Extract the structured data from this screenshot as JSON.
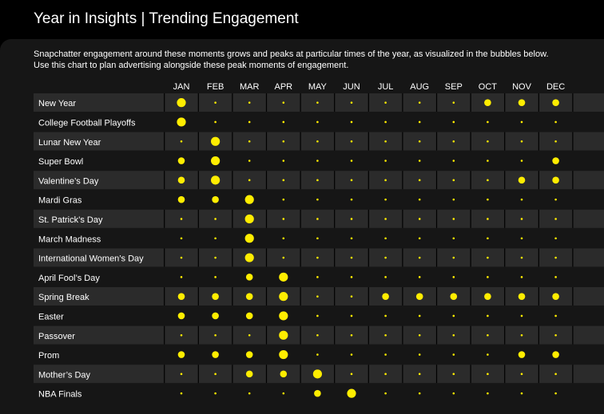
{
  "page": {
    "title": "Year in Insights | Trending Engagement",
    "intro_line1": "Snapchatter engagement around these moments grows and peaks at particular times of the year, as visualized in the bubbles below.",
    "intro_line2": "Use this chart to plan advertising alongside these peak moments of engagement."
  },
  "colors": {
    "bubble": "#FFED00",
    "row_dark": "#2B2B2B",
    "row_light": "#161616",
    "background": "#000000"
  },
  "chart_data": {
    "type": "bubble-matrix",
    "title": "",
    "categories": [
      "JAN",
      "FEB",
      "MAR",
      "APR",
      "MAY",
      "JUN",
      "JUL",
      "AUG",
      "SEP",
      "OCT",
      "NOV",
      "DEC"
    ],
    "scale": "0 = minimal engagement, 3 = peak engagement",
    "rows": [
      {
        "label": "New Year",
        "values": [
          2,
          0,
          0,
          0,
          0,
          0,
          0,
          0,
          0,
          1,
          1,
          1
        ]
      },
      {
        "label": "College Football Playoffs",
        "values": [
          2,
          0,
          0,
          0,
          0,
          0,
          0,
          0,
          0,
          0,
          0,
          0
        ]
      },
      {
        "label": "Lunar New Year",
        "values": [
          0,
          2,
          0,
          0,
          0,
          0,
          0,
          0,
          0,
          0,
          0,
          0
        ]
      },
      {
        "label": "Super Bowl",
        "values": [
          1,
          2,
          0,
          0,
          0,
          0,
          0,
          0,
          0,
          0,
          0,
          1
        ]
      },
      {
        "label": "Valentine’s Day",
        "values": [
          1,
          2,
          0,
          0,
          0,
          0,
          0,
          0,
          0,
          0,
          1,
          1
        ]
      },
      {
        "label": "Mardi Gras",
        "values": [
          1,
          1,
          2,
          0,
          0,
          0,
          0,
          0,
          0,
          0,
          0,
          0
        ]
      },
      {
        "label": "St. Patrick’s Day",
        "values": [
          0,
          0,
          2,
          0,
          0,
          0,
          0,
          0,
          0,
          0,
          0,
          0
        ]
      },
      {
        "label": "March Madness",
        "values": [
          0,
          0,
          2,
          0,
          0,
          0,
          0,
          0,
          0,
          0,
          0,
          0
        ]
      },
      {
        "label": "International Women’s Day",
        "values": [
          0,
          0,
          2,
          0,
          0,
          0,
          0,
          0,
          0,
          0,
          0,
          0
        ]
      },
      {
        "label": "April Fool’s Day",
        "values": [
          0,
          0,
          1,
          2,
          0,
          0,
          0,
          0,
          0,
          0,
          0,
          0
        ]
      },
      {
        "label": "Spring Break",
        "values": [
          1,
          1,
          1,
          2,
          0,
          0,
          1,
          1,
          1,
          1,
          1,
          1
        ]
      },
      {
        "label": "Easter",
        "values": [
          1,
          1,
          1,
          2,
          0,
          0,
          0,
          0,
          0,
          0,
          0,
          0
        ]
      },
      {
        "label": "Passover",
        "values": [
          0,
          0,
          0,
          2,
          0,
          0,
          0,
          0,
          0,
          0,
          0,
          0
        ]
      },
      {
        "label": "Prom",
        "values": [
          1,
          1,
          1,
          2,
          0,
          0,
          0,
          0,
          0,
          0,
          1,
          1
        ]
      },
      {
        "label": "Mother’s Day",
        "values": [
          0,
          0,
          1,
          1,
          2,
          0,
          0,
          0,
          0,
          0,
          0,
          0
        ]
      },
      {
        "label": "NBA Finals",
        "values": [
          0,
          0,
          0,
          0,
          1,
          2,
          0,
          0,
          0,
          0,
          0,
          0
        ]
      }
    ]
  }
}
